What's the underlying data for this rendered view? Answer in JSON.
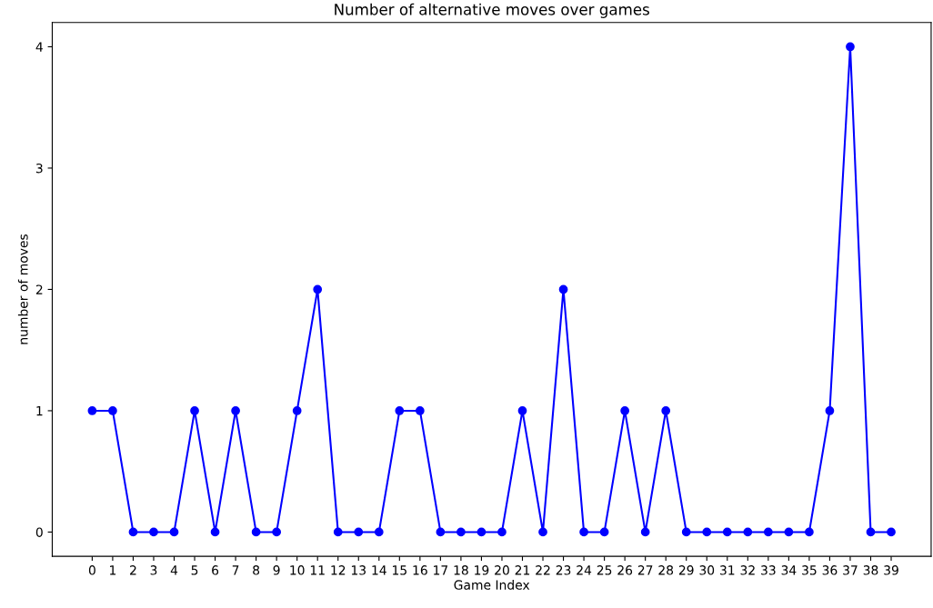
{
  "chart_data": {
    "type": "line",
    "title": "Number of alternative moves over games",
    "xlabel": "Game Index",
    "ylabel": "number of moves",
    "x": [
      0,
      1,
      2,
      3,
      4,
      5,
      6,
      7,
      8,
      9,
      10,
      11,
      12,
      13,
      14,
      15,
      16,
      17,
      18,
      19,
      20,
      21,
      22,
      23,
      24,
      25,
      26,
      27,
      28,
      29,
      30,
      31,
      32,
      33,
      34,
      35,
      36,
      37,
      38,
      39
    ],
    "series": [
      {
        "color": "#0000ff",
        "values": [
          1,
          1,
          0,
          0,
          0,
          1,
          0,
          1,
          0,
          0,
          1,
          2,
          0,
          0,
          0,
          1,
          1,
          0,
          0,
          0,
          0,
          1,
          0,
          2,
          0,
          0,
          1,
          0,
          1,
          0,
          0,
          0,
          0,
          0,
          0,
          0,
          1,
          4,
          0,
          0
        ]
      }
    ],
    "xlim": [
      -1.95,
      40.95
    ],
    "xticks": [
      0,
      1,
      2,
      3,
      4,
      5,
      6,
      7,
      8,
      9,
      10,
      11,
      12,
      13,
      14,
      15,
      16,
      17,
      18,
      19,
      20,
      21,
      22,
      23,
      24,
      25,
      26,
      27,
      28,
      29,
      30,
      31,
      32,
      33,
      34,
      35,
      36,
      37,
      38,
      39
    ],
    "ylim": [
      -0.2,
      4.2
    ],
    "yticks": [
      0,
      1,
      2,
      3,
      4
    ],
    "grid": false,
    "legend": false,
    "marker": "circle",
    "line_style": "solid"
  }
}
